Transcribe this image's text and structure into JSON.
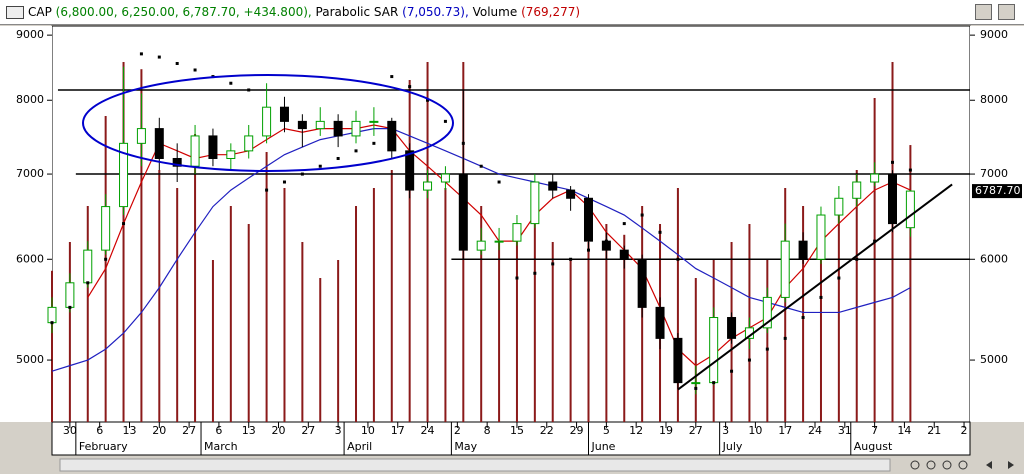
{
  "header": {
    "symbol": "CAP",
    "quote": "(6,800.00, 6,250.00, 6,787.70, +434.800),",
    "sar_label": "Parabolic SAR",
    "sar_value": "(7,050.73),",
    "volume_label": "Volume",
    "volume_value": "(769,277)"
  },
  "chart_data": {
    "type": "candlestick",
    "log_scale": true,
    "ylim": [
      4470,
      9150
    ],
    "yticks": [
      5000,
      6000,
      7000,
      8000,
      9000
    ],
    "xlim": [
      0,
      154
    ],
    "xticks": [
      {
        "value": 3,
        "label": "30"
      },
      {
        "value": 8,
        "label": "6"
      },
      {
        "value": 13,
        "label": "13"
      },
      {
        "value": 18,
        "label": "20"
      },
      {
        "value": 23,
        "label": "27"
      },
      {
        "value": 28,
        "label": "6"
      },
      {
        "value": 33,
        "label": "13"
      },
      {
        "value": 38,
        "label": "20"
      },
      {
        "value": 43,
        "label": "27"
      },
      {
        "value": 48,
        "label": "3"
      },
      {
        "value": 53,
        "label": "10"
      },
      {
        "value": 58,
        "label": "17"
      },
      {
        "value": 63,
        "label": "24"
      },
      {
        "value": 68,
        "label": "2"
      },
      {
        "value": 73,
        "label": "8"
      },
      {
        "value": 78,
        "label": "15"
      },
      {
        "value": 83,
        "label": "22"
      },
      {
        "value": 88,
        "label": "29"
      },
      {
        "value": 93,
        "label": "5"
      },
      {
        "value": 98,
        "label": "12"
      },
      {
        "value": 103,
        "label": "19"
      },
      {
        "value": 108,
        "label": "27"
      },
      {
        "value": 113,
        "label": "3"
      },
      {
        "value": 118,
        "label": "10"
      },
      {
        "value": 123,
        "label": "17"
      },
      {
        "value": 128,
        "label": "24"
      },
      {
        "value": 133,
        "label": "31"
      },
      {
        "value": 138,
        "label": "7"
      },
      {
        "value": 143,
        "label": "14"
      },
      {
        "value": 148,
        "label": "21"
      },
      {
        "value": 153,
        "label": "2"
      }
    ],
    "months": [
      {
        "value": 4,
        "label": "February"
      },
      {
        "value": 25,
        "label": "March"
      },
      {
        "value": 49,
        "label": "April"
      },
      {
        "value": 67,
        "label": "May"
      },
      {
        "value": 90,
        "label": "June"
      },
      {
        "value": 112,
        "label": "July"
      },
      {
        "value": 134,
        "label": "August"
      }
    ],
    "x": [
      0,
      3,
      6,
      9,
      12,
      15,
      18,
      21,
      24,
      27,
      30,
      33,
      36,
      39,
      42,
      45,
      48,
      51,
      54,
      57,
      60,
      63,
      66,
      69,
      72,
      75,
      78,
      81,
      84,
      87,
      90,
      93,
      96,
      99,
      102,
      105,
      108,
      111,
      114,
      117,
      120,
      123,
      126,
      129,
      132,
      135,
      138,
      141,
      144
    ],
    "ohlc": [
      [
        5350,
        5600,
        5250,
        5500
      ],
      [
        5500,
        5850,
        5450,
        5750
      ],
      [
        5750,
        6200,
        5700,
        6100
      ],
      [
        6100,
        6750,
        6050,
        6600
      ],
      [
        6600,
        8500,
        6500,
        7400
      ],
      [
        7400,
        8100,
        7100,
        7600
      ],
      [
        7600,
        7750,
        7050,
        7200
      ],
      [
        7200,
        7400,
        6900,
        7100
      ],
      [
        7100,
        7650,
        7000,
        7500
      ],
      [
        7500,
        7600,
        7100,
        7200
      ],
      [
        7200,
        7400,
        7050,
        7300
      ],
      [
        7300,
        7650,
        7200,
        7500
      ],
      [
        7500,
        8250,
        7400,
        7900
      ],
      [
        7900,
        8050,
        7550,
        7700
      ],
      [
        7700,
        7800,
        7350,
        7600
      ],
      [
        7600,
        7900,
        7500,
        7700
      ],
      [
        7700,
        7800,
        7350,
        7500
      ],
      [
        7500,
        7850,
        7400,
        7700
      ],
      [
        7700,
        7900,
        7500,
        7700
      ],
      [
        7700,
        7750,
        7200,
        7300
      ],
      [
        7300,
        7400,
        6700,
        6800
      ],
      [
        6800,
        7050,
        6700,
        6900
      ],
      [
        6900,
        7100,
        6800,
        7000
      ],
      [
        7000,
        8150,
        6000,
        6100
      ],
      [
        6100,
        6350,
        6050,
        6200
      ],
      [
        6200,
        6350,
        6100,
        6200
      ],
      [
        6200,
        6500,
        6150,
        6400
      ],
      [
        6400,
        7000,
        6350,
        6900
      ],
      [
        6900,
        7000,
        6700,
        6800
      ],
      [
        6800,
        6850,
        6550,
        6700
      ],
      [
        6700,
        6750,
        6100,
        6200
      ],
      [
        6200,
        6300,
        6000,
        6100
      ],
      [
        6100,
        6150,
        5900,
        6000
      ],
      [
        6000,
        6050,
        5400,
        5500
      ],
      [
        5500,
        5600,
        5100,
        5200
      ],
      [
        5200,
        5250,
        4750,
        4800
      ],
      [
        4800,
        4950,
        4700,
        4800
      ],
      [
        4800,
        5500,
        4780,
        5400
      ],
      [
        5400,
        5450,
        5150,
        5200
      ],
      [
        5200,
        5400,
        5100,
        5300
      ],
      [
        5300,
        5700,
        5250,
        5600
      ],
      [
        5600,
        6400,
        5550,
        6200
      ],
      [
        6200,
        6300,
        5950,
        6000
      ],
      [
        6000,
        6600,
        5950,
        6500
      ],
      [
        6500,
        6850,
        6400,
        6700
      ],
      [
        6700,
        7000,
        6600,
        6900
      ],
      [
        6900,
        7150,
        6850,
        7000
      ],
      [
        7000,
        7050,
        6300,
        6400
      ],
      [
        6353,
        6800,
        6250,
        6787.7
      ]
    ],
    "volume": [
      420000,
      500000,
      600000,
      850000,
      1000000,
      980000,
      700000,
      650000,
      800000,
      450000,
      600000,
      550000,
      750000,
      650000,
      500000,
      400000,
      450000,
      600000,
      650000,
      700000,
      950000,
      1000000,
      650000,
      1000000,
      600000,
      500000,
      550000,
      600000,
      500000,
      450000,
      500000,
      550000,
      520000,
      600000,
      550000,
      650000,
      400000,
      450000,
      500000,
      550000,
      450000,
      650000,
      600000,
      550000,
      600000,
      700000,
      900000,
      1000000,
      769277
    ],
    "vlim": [
      0,
      1100000
    ],
    "series": [
      {
        "name": "MA short",
        "color": "#d00000",
        "values": [
          null,
          null,
          5600,
          5900,
          6400,
          6900,
          7400,
          7300,
          7200,
          7250,
          7250,
          7300,
          7450,
          7600,
          7550,
          7600,
          7600,
          7600,
          7650,
          7600,
          7300,
          7100,
          6900,
          6700,
          6500,
          6200,
          6200,
          6500,
          6700,
          6800,
          6600,
          6300,
          6100,
          5900,
          5500,
          5100,
          4950,
          5050,
          5200,
          5300,
          5400,
          5700,
          5900,
          6200,
          6400,
          6600,
          6800,
          6900,
          6800
        ]
      },
      {
        "name": "MA long",
        "color": "#2020c0",
        "values": [
          4900,
          4950,
          5000,
          5100,
          5250,
          5450,
          5700,
          6000,
          6300,
          6600,
          6800,
          6950,
          7100,
          7250,
          7350,
          7450,
          7500,
          7550,
          7600,
          7600,
          7500,
          7400,
          7300,
          7200,
          7100,
          7000,
          6950,
          6900,
          6850,
          6800,
          6700,
          6600,
          6500,
          6350,
          6200,
          6050,
          5900,
          5800,
          5700,
          5600,
          5550,
          5500,
          5450,
          5450,
          5450,
          5500,
          5550,
          5600,
          5700
        ]
      }
    ],
    "sar": [
      5350,
      5500,
      5750,
      6000,
      6400,
      8700,
      8650,
      8550,
      8450,
      8350,
      8250,
      8150,
      6800,
      6900,
      7000,
      7100,
      7200,
      7300,
      7400,
      8350,
      8200,
      8000,
      7700,
      7400,
      7100,
      6900,
      5800,
      5850,
      5950,
      6000,
      6100,
      6200,
      6400,
      6500,
      6300,
      6000,
      4750,
      4800,
      4900,
      5000,
      5100,
      5200,
      5400,
      5600,
      5800,
      6000,
      6200,
      7150,
      7050.73
    ],
    "levels": [
      {
        "value": 8150,
        "x0": 1
      },
      {
        "value": 7000,
        "x0": 4
      },
      {
        "value": 6000,
        "x0": 67
      }
    ],
    "trendline": {
      "x": [
        105,
        151
      ],
      "values": [
        4740,
        6870
      ]
    },
    "last_price": {
      "value": 6787.7,
      "label": "6787.70"
    },
    "candle_up_color": "#00a000",
    "candle_down_color": "#000000",
    "volume_color": "#8b1a1a",
    "sar_color": "#000000"
  }
}
